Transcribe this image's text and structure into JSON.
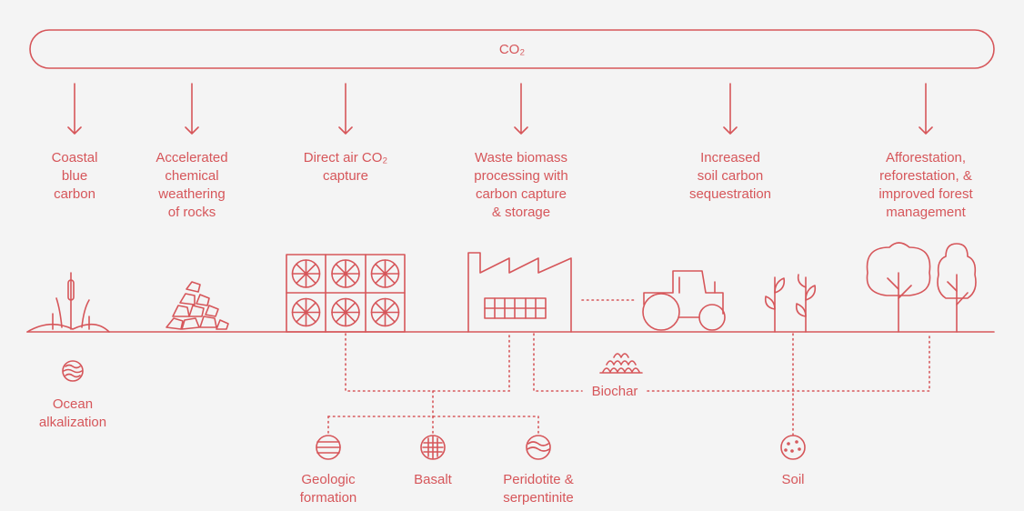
{
  "diagram": {
    "source": "CO₂",
    "methods": [
      [
        "Coastal",
        "blue",
        "carbon"
      ],
      [
        "Accelerated",
        "chemical",
        "weathering",
        "of rocks"
      ],
      [
        "Direct air CO₂",
        "capture"
      ],
      [
        "Waste biomass",
        "processing with",
        "carbon capture",
        "& storage"
      ],
      [
        "Increased",
        "soil carbon",
        "sequestration"
      ],
      [
        "Afforestation,",
        "reforestation, &",
        "improved forest",
        "management"
      ]
    ],
    "ocean": [
      "Ocean",
      "alkalization"
    ],
    "biochar": "Biochar",
    "storage": [
      [
        "Geologic",
        "formation"
      ],
      [
        "Basalt"
      ],
      [
        "Peridotite &",
        "serpentinite"
      ],
      [
        "Soil"
      ]
    ]
  }
}
